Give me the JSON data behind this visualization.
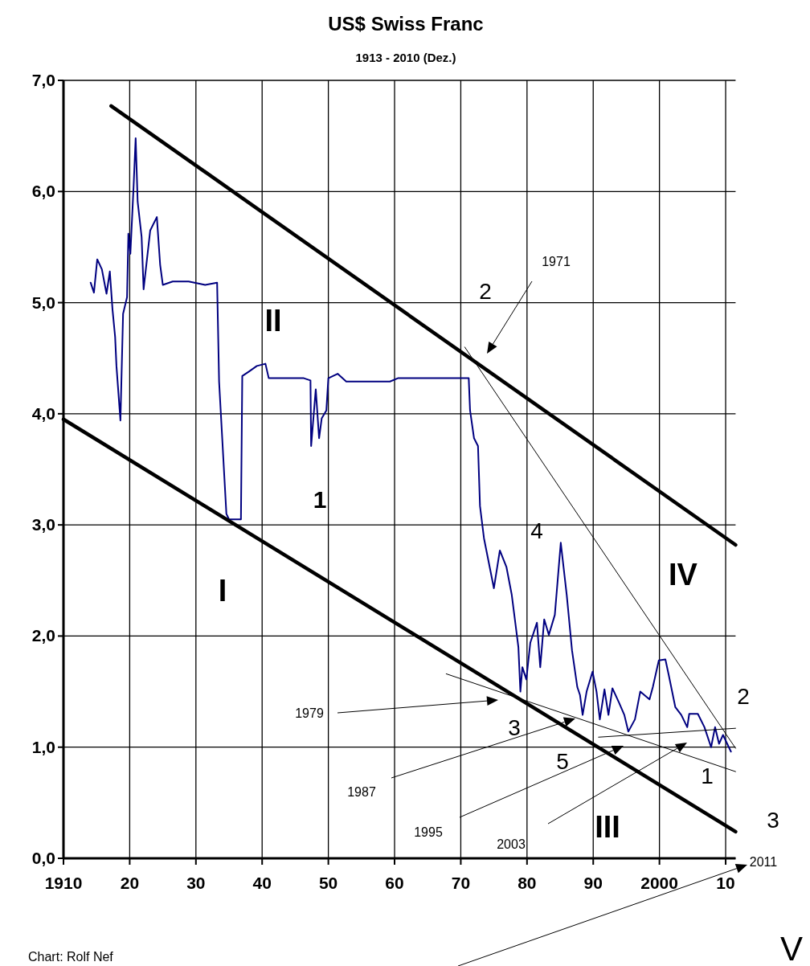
{
  "chart_data": {
    "type": "line",
    "title": "US$ Swiss Franc",
    "subtitle": "1913 - 2010 (Dez.)",
    "xlim": [
      1910,
      2011.5
    ],
    "ylim": [
      0,
      7
    ],
    "xticks": [
      1910,
      {
        "value": 1920,
        "label": "20"
      },
      {
        "value": 1930,
        "label": "30"
      },
      {
        "value": 1940,
        "label": "40"
      },
      {
        "value": 1950,
        "label": "50"
      },
      {
        "value": 1960,
        "label": "60"
      },
      {
        "value": 1970,
        "label": "70"
      },
      {
        "value": 1980,
        "label": "80"
      },
      {
        "value": 1990,
        "label": "90"
      },
      2000,
      {
        "value": 2010,
        "label": "10"
      }
    ],
    "yticks": [
      {
        "value": 0,
        "label": "0,0"
      },
      {
        "value": 1,
        "label": "1,0"
      },
      {
        "value": 2,
        "label": "2,0"
      },
      {
        "value": 3,
        "label": "3,0"
      },
      {
        "value": 4,
        "label": "4,0"
      },
      {
        "value": 5,
        "label": "5,0"
      },
      {
        "value": 6,
        "label": "6,0"
      },
      {
        "value": 7,
        "label": "7,0"
      }
    ],
    "grid": true,
    "series": [
      {
        "color": "#000080",
        "x": [
          1914.1,
          1914.6,
          1915.1,
          1915.8,
          1916.5,
          1917,
          1917.4,
          1917.8,
          1918,
          1918.6,
          1919,
          1919.6,
          1919.8,
          1920.1,
          1920.6,
          1920.9,
          1921.2,
          1921.8,
          1922.1,
          1923.1,
          1924.1,
          1924.6,
          1925,
          1926.5,
          1928.9,
          1931.4,
          1933.2,
          1933.5,
          1934.6,
          1935,
          1936.8,
          1937,
          1938,
          1939.2,
          1940.5,
          1941,
          1946.3,
          1947.3,
          1947.4,
          1948.1,
          1948.6,
          1949,
          1949.7,
          1950,
          1951.4,
          1952.7,
          1959.3,
          1960.5,
          1963.5,
          1971.2,
          1971.4,
          1972,
          1972.6,
          1972.9,
          1973.5,
          1975,
          1975.9,
          1976.9,
          1977.7,
          1978.7,
          1979,
          1979.3,
          1979.9,
          1980.5,
          1981.5,
          1982,
          1982.6,
          1983.3,
          1984.2,
          1985.1,
          1986,
          1986.8,
          1987.6,
          1988,
          1988.4,
          1989,
          1989.9,
          1990.5,
          1991,
          1991.7,
          1992.3,
          1992.9,
          1993.9,
          1994.7,
          1995.3,
          1996.3,
          1997.1,
          1998.5,
          1999,
          1999.9,
          2000.9,
          2001.4,
          2002.4,
          2003.3,
          2004.2,
          2004.5,
          2005.8,
          2006.8,
          2007.8,
          2008.4,
          2009,
          2009.6,
          2010.8
        ],
        "values": [
          5.18,
          5.09,
          5.39,
          5.3,
          5.08,
          5.28,
          4.94,
          4.69,
          4.43,
          3.94,
          4.9,
          5.05,
          5.62,
          5.44,
          6.06,
          6.48,
          5.91,
          5.59,
          5.12,
          5.65,
          5.77,
          5.34,
          5.16,
          5.19,
          5.19,
          5.16,
          5.18,
          4.29,
          3.1,
          3.05,
          3.05,
          4.34,
          4.38,
          4.43,
          4.45,
          4.32,
          4.32,
          4.3,
          3.71,
          4.22,
          3.78,
          3.96,
          4.03,
          4.32,
          4.36,
          4.29,
          4.29,
          4.32,
          4.32,
          4.32,
          4.03,
          3.78,
          3.71,
          3.17,
          2.88,
          2.43,
          2.77,
          2.62,
          2.37,
          1.9,
          1.5,
          1.72,
          1.61,
          1.94,
          2.12,
          1.72,
          2.15,
          2.01,
          2.19,
          2.84,
          2.37,
          1.87,
          1.54,
          1.47,
          1.29,
          1.5,
          1.68,
          1.5,
          1.25,
          1.52,
          1.29,
          1.53,
          1.4,
          1.29,
          1.14,
          1.25,
          1.5,
          1.43,
          1.54,
          1.78,
          1.79,
          1.65,
          1.36,
          1.29,
          1.18,
          1.3,
          1.3,
          1.18,
          1.0,
          1.18,
          1.03,
          1.11,
          0.96
        ]
      },
      {
        "color": "#000000",
        "x": [
          1917.2,
          2011.5
        ],
        "values": [
          6.77,
          2.82
        ]
      },
      {
        "color": "#000000",
        "x": [
          1910,
          2011.5
        ],
        "values": [
          3.95,
          0.24
        ]
      },
      {
        "color": "#000000",
        "x": [
          1970.6,
          2011.5
        ],
        "values": [
          4.6,
          0.99
        ]
      },
      {
        "color": "#000000",
        "x": [
          1967.8,
          2011.5
        ],
        "values": [
          1.66,
          0.78
        ]
      },
      {
        "color": "#000000",
        "x": [
          1990.8,
          2011.5
        ],
        "values": [
          1.09,
          1.17
        ]
      }
    ],
    "annotations": [
      "II",
      "1",
      "I",
      "2",
      "4",
      "IV",
      "3",
      "5",
      "III",
      "1",
      "2",
      "3",
      "V",
      "1971",
      "1979",
      "1987",
      "1995",
      "2003",
      "2011",
      "Chart: Rolf Nef"
    ]
  }
}
